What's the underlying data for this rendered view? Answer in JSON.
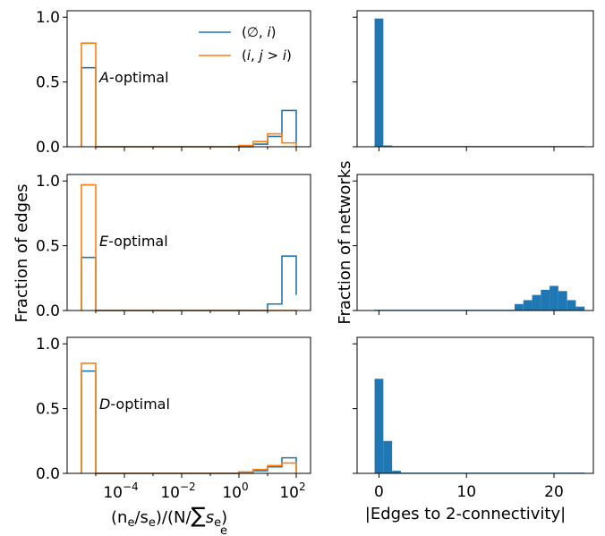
{
  "colors": {
    "blue": "#1f77b4",
    "orange": "#ff7f0e"
  },
  "left_xlabel": {
    "main": "(n",
    "sub_e": "e",
    "mid": "/s",
    "sub_e2": "e",
    "rest": ")/(N/",
    "sum": "∑",
    "s": "s",
    "sub_e3": "e",
    "close": ")",
    "sum_sub": "e"
  },
  "left_ylabel": "Fraction of edges",
  "right_xlabel": "|Edges to 2-connectivity|",
  "right_ylabel": "Fraction of networks",
  "left_xticks": [
    {
      "base": "10",
      "exp": "−4",
      "logx": -4
    },
    {
      "base": "10",
      "exp": "−2",
      "logx": -2
    },
    {
      "base": "10",
      "exp": "0",
      "logx": 0
    },
    {
      "base": "10",
      "exp": "2",
      "logx": 2
    }
  ],
  "left_yticks": [
    "0.0",
    "0.5",
    "1.0"
  ],
  "right_xticks": [
    "0",
    "10",
    "20"
  ],
  "legend": [
    {
      "label_parts": [
        "(",
        "∅",
        ", ",
        "i",
        ")"
      ],
      "color_key": "blue"
    },
    {
      "label_parts": [
        "(",
        "i",
        ", ",
        "j",
        " > ",
        "i",
        ")"
      ],
      "color_key": "orange"
    }
  ],
  "chart_data": [
    {
      "type": "histogram-step",
      "panel_label": {
        "italic": "A",
        "rest": "-optimal"
      },
      "x_scale": "log",
      "xlim_log10": [
        -6.0,
        2.5
      ],
      "ylim": [
        0,
        1.05
      ],
      "bin_edges_log10": [
        -5.5,
        -5.0,
        -4.5,
        -4.0,
        -3.5,
        -3.0,
        -2.5,
        -2.0,
        -1.5,
        -1.0,
        -0.5,
        0.0,
        0.5,
        1.0,
        1.5,
        2.0
      ],
      "series": [
        {
          "name": "(∅, i)",
          "color_key": "blue",
          "values": [
            0.61,
            0.0,
            0.0,
            0.0,
            0.0,
            0.0,
            0.0,
            0.0,
            0.0,
            0.0,
            0.0,
            0.0,
            0.02,
            0.08,
            0.28,
            0.02
          ]
        },
        {
          "name": "(i, j > i)",
          "color_key": "orange",
          "values": [
            0.8,
            0.0,
            0.0,
            0.0,
            0.0,
            0.0,
            0.0,
            0.0,
            0.0,
            0.0,
            0.0,
            0.01,
            0.04,
            0.1,
            0.03,
            0.0
          ]
        }
      ]
    },
    {
      "type": "histogram-step",
      "panel_label": {
        "italic": "E",
        "rest": "-optimal"
      },
      "x_scale": "log",
      "xlim_log10": [
        -6.0,
        2.5
      ],
      "ylim": [
        0,
        1.05
      ],
      "bin_edges_log10": [
        -5.5,
        -5.0,
        -4.5,
        -4.0,
        -3.5,
        -3.0,
        -2.5,
        -2.0,
        -1.5,
        -1.0,
        -0.5,
        0.0,
        0.5,
        1.0,
        1.5,
        2.0
      ],
      "series": [
        {
          "name": "(∅, i)",
          "color_key": "blue",
          "values": [
            0.41,
            0.0,
            0.0,
            0.0,
            0.0,
            0.0,
            0.0,
            0.0,
            0.0,
            0.0,
            0.0,
            0.0,
            0.0,
            0.05,
            0.42,
            0.12
          ]
        },
        {
          "name": "(i, j > i)",
          "color_key": "orange",
          "values": [
            0.97,
            0.0,
            0.0,
            0.0,
            0.0,
            0.0,
            0.0,
            0.0,
            0.0,
            0.0,
            0.0,
            0.0,
            0.0,
            0.0,
            0.0,
            0.0
          ]
        }
      ]
    },
    {
      "type": "histogram-step",
      "panel_label": {
        "italic": "D",
        "rest": "-optimal"
      },
      "x_scale": "log",
      "xlim_log10": [
        -6.0,
        2.5
      ],
      "ylim": [
        0,
        1.05
      ],
      "bin_edges_log10": [
        -5.5,
        -5.0,
        -4.5,
        -4.0,
        -3.5,
        -3.0,
        -2.5,
        -2.0,
        -1.5,
        -1.0,
        -0.5,
        0.0,
        0.5,
        1.0,
        1.5,
        2.0
      ],
      "series": [
        {
          "name": "(∅, i)",
          "color_key": "blue",
          "values": [
            0.79,
            0.0,
            0.0,
            0.0,
            0.0,
            0.0,
            0.0,
            0.0,
            0.0,
            0.0,
            0.0,
            0.01,
            0.02,
            0.05,
            0.12,
            0.02
          ]
        },
        {
          "name": "(i, j > i)",
          "color_key": "orange",
          "values": [
            0.85,
            0.0,
            0.0,
            0.0,
            0.0,
            0.0,
            0.0,
            0.0,
            0.0,
            0.0,
            0.0,
            0.01,
            0.03,
            0.06,
            0.08,
            0.0
          ]
        }
      ]
    },
    {
      "type": "bar-histogram",
      "xlim": [
        -2.5,
        24.5
      ],
      "ylim": [
        0,
        1.05
      ],
      "bin_width": 1,
      "bins": [
        0,
        1,
        2,
        3,
        4,
        5,
        6,
        7,
        8,
        9,
        10,
        11,
        12,
        13,
        14,
        15,
        16,
        17,
        18,
        19,
        20,
        21,
        22,
        23
      ],
      "values": [
        0.99,
        0.01,
        0.0,
        0.0,
        0.0,
        0.0,
        0.0,
        0.0,
        0.0,
        0.0,
        0.0,
        0.0,
        0.0,
        0.0,
        0.0,
        0.0,
        0.0,
        0.0,
        0.0,
        0.0,
        0.0,
        0.0,
        0.0,
        0.0
      ]
    },
    {
      "type": "bar-histogram",
      "xlim": [
        -2.5,
        24.5
      ],
      "ylim": [
        0,
        1.05
      ],
      "bin_width": 1,
      "bins": [
        0,
        1,
        2,
        3,
        4,
        5,
        6,
        7,
        8,
        9,
        10,
        11,
        12,
        13,
        14,
        15,
        16,
        17,
        18,
        19,
        20,
        21,
        22,
        23
      ],
      "values": [
        0.0,
        0.0,
        0.0,
        0.0,
        0.0,
        0.0,
        0.0,
        0.0,
        0.0,
        0.0,
        0.0,
        0.0,
        0.0,
        0.0,
        0.0,
        0.0,
        0.05,
        0.08,
        0.12,
        0.16,
        0.19,
        0.15,
        0.08,
        0.03
      ]
    },
    {
      "type": "bar-histogram",
      "xlim": [
        -2.5,
        24.5
      ],
      "ylim": [
        0,
        1.05
      ],
      "bin_width": 1,
      "bins": [
        0,
        1,
        2,
        3,
        4,
        5,
        6,
        7,
        8,
        9,
        10,
        11,
        12,
        13,
        14,
        15,
        16,
        17,
        18,
        19,
        20,
        21,
        22,
        23
      ],
      "values": [
        0.73,
        0.25,
        0.02,
        0.0,
        0.0,
        0.0,
        0.0,
        0.0,
        0.0,
        0.0,
        0.0,
        0.0,
        0.0,
        0.0,
        0.0,
        0.0,
        0.0,
        0.0,
        0.0,
        0.0,
        0.0,
        0.0,
        0.0,
        0.0
      ]
    }
  ]
}
